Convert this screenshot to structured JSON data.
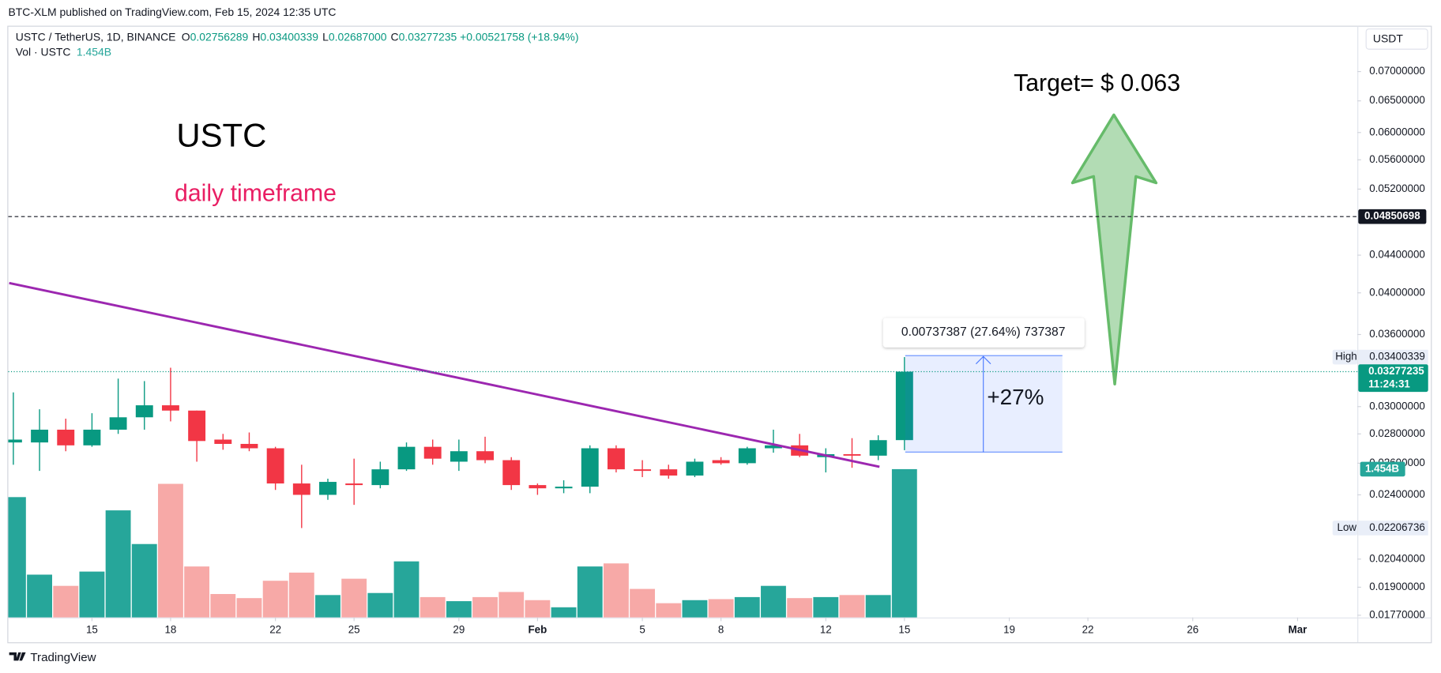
{
  "header": {
    "published": "BTC-XLM published on TradingView.com, Feb 15, 2024 12:35 UTC",
    "brand": "TradingView",
    "currency": "USDT"
  },
  "chart_data": {
    "type": "candlestick",
    "title": "USTC / TetherUS, 1D, BINANCE",
    "legend": {
      "keys": [
        "O",
        "H",
        "L",
        "C"
      ],
      "values": [
        "0.02756289",
        "0.03400339",
        "0.02687000",
        "0.03277235"
      ],
      "change": "+0.00521758 (+18.94%)"
    },
    "x": [
      "2024-01-12",
      "2024-01-13",
      "2024-01-14",
      "2024-01-15",
      "2024-01-16",
      "2024-01-17",
      "2024-01-18",
      "2024-01-19",
      "2024-01-20",
      "2024-01-21",
      "2024-01-22",
      "2024-01-23",
      "2024-01-24",
      "2024-01-25",
      "2024-01-26",
      "2024-01-27",
      "2024-01-28",
      "2024-01-29",
      "2024-01-30",
      "2024-01-31",
      "2024-02-01",
      "2024-02-02",
      "2024-02-03",
      "2024-02-04",
      "2024-02-05",
      "2024-02-06",
      "2024-02-07",
      "2024-02-08",
      "2024-02-09",
      "2024-02-10",
      "2024-02-11",
      "2024-02-12",
      "2024-02-13",
      "2024-02-14",
      "2024-02-15"
    ],
    "open": [
      0.0274,
      0.0274,
      0.0283,
      0.0272,
      0.0283,
      0.0292,
      0.0301,
      0.0297,
      0.0276,
      0.0273,
      0.027,
      0.0247,
      0.024,
      0.0247,
      0.0246,
      0.0256,
      0.0271,
      0.0261,
      0.0268,
      0.0262,
      0.0246,
      0.0244,
      0.0245,
      0.027,
      0.0256,
      0.0256,
      0.0252,
      0.0262,
      0.026,
      0.027,
      0.0272,
      0.0264,
      0.0266,
      0.0265,
      0.02756289
    ],
    "high": [
      0.0311,
      0.0298,
      0.0291,
      0.0295,
      0.0322,
      0.032,
      0.0331,
      0.0297,
      0.028,
      0.0281,
      0.0271,
      0.0259,
      0.025,
      0.0263,
      0.0261,
      0.0274,
      0.0276,
      0.0276,
      0.0278,
      0.0264,
      0.0247,
      0.0249,
      0.0272,
      0.0272,
      0.0262,
      0.0259,
      0.0263,
      0.0264,
      0.0271,
      0.0283,
      0.028,
      0.027,
      0.0277,
      0.0279,
      0.03400339
    ],
    "low": [
      0.0259,
      0.0255,
      0.0268,
      0.0271,
      0.028,
      0.0283,
      0.0289,
      0.0261,
      0.0269,
      0.0268,
      0.0243,
      0.02206736,
      0.0237,
      0.0234,
      0.0244,
      0.0255,
      0.0259,
      0.0255,
      0.026,
      0.0243,
      0.024,
      0.0241,
      0.0241,
      0.0254,
      0.0251,
      0.025,
      0.0251,
      0.0259,
      0.0259,
      0.0267,
      0.0264,
      0.0254,
      0.0257,
      0.0262,
      0.02687
    ],
    "close": [
      0.0276,
      0.0283,
      0.0272,
      0.0283,
      0.0292,
      0.0301,
      0.0297,
      0.0275,
      0.0273,
      0.027,
      0.0247,
      0.024,
      0.0248,
      0.0246,
      0.0256,
      0.0271,
      0.0263,
      0.0268,
      0.0262,
      0.0246,
      0.0244,
      0.0245,
      0.027,
      0.0256,
      0.0255,
      0.0252,
      0.0261,
      0.026,
      0.027,
      0.0272,
      0.0265,
      0.0266,
      0.0265,
      0.02756,
      0.03277235
    ],
    "volume": {
      "name": "Vol · USTC",
      "values": [
        1.18,
        0.42,
        0.31,
        0.45,
        1.05,
        0.72,
        1.31,
        0.5,
        0.23,
        0.19,
        0.36,
        0.44,
        0.22,
        0.38,
        0.24,
        0.55,
        0.2,
        0.16,
        0.2,
        0.25,
        0.17,
        0.1,
        0.5,
        0.53,
        0.28,
        0.14,
        0.17,
        0.18,
        0.2,
        0.31,
        0.19,
        0.2,
        0.22,
        0.22,
        1.454
      ],
      "value_labels": [
        null,
        null,
        null,
        null,
        null,
        null,
        null,
        null,
        null,
        null,
        null,
        null,
        null,
        null,
        null,
        null,
        null,
        null,
        null,
        null,
        null,
        null,
        null,
        null,
        null,
        null,
        null,
        null,
        null,
        null,
        null,
        null,
        null,
        null,
        "1.454B"
      ]
    },
    "colors": {
      "up": "#089981",
      "down": "#f23645",
      "volume_up": "#26a69a",
      "volume_down": "#f7a9a7"
    },
    "log": true,
    "grid": false,
    "ylim": [
      0.0176,
      0.0786
    ],
    "volume_lim": [
      0,
      5.8
    ],
    "yticks": [
      {
        "value": 0.07,
        "label": "0.07000000"
      },
      {
        "value": 0.065,
        "label": "0.06500000"
      },
      {
        "value": 0.06,
        "label": "0.06000000"
      },
      {
        "value": 0.056,
        "label": "0.05600000"
      },
      {
        "value": 0.052,
        "label": "0.05200000"
      },
      {
        "value": 0.044,
        "label": "0.04400000"
      },
      {
        "value": 0.04,
        "label": "0.04000000"
      },
      {
        "value": 0.036,
        "label": "0.03600000"
      },
      {
        "value": 0.03,
        "label": "0.03000000"
      },
      {
        "value": 0.028,
        "label": "0.02800000"
      },
      {
        "value": 0.026,
        "label": "0.02600000"
      },
      {
        "value": 0.024,
        "label": "0.02400000"
      },
      {
        "value": 0.0204,
        "label": "0.02040000"
      },
      {
        "value": 0.019,
        "label": "0.01900000"
      },
      {
        "value": 0.0177,
        "label": "0.01770000"
      }
    ],
    "xlim": [
      "2024-01-11",
      "2024-03-04"
    ],
    "xticks": [
      {
        "value": "2024-01-15",
        "label": "15"
      },
      {
        "value": "2024-01-18",
        "label": "18"
      },
      {
        "value": "2024-01-22",
        "label": "22"
      },
      {
        "value": "2024-01-25",
        "label": "25"
      },
      {
        "value": "2024-01-29",
        "label": "29"
      },
      {
        "value": "2024-02-01",
        "label": "Feb"
      },
      {
        "value": "2024-02-05",
        "label": "5"
      },
      {
        "value": "2024-02-08",
        "label": "8"
      },
      {
        "value": "2024-02-12",
        "label": "12"
      },
      {
        "value": "2024-02-15",
        "label": "15"
      },
      {
        "value": "2024-02-19",
        "label": "19"
      },
      {
        "value": "2024-02-22",
        "label": "22"
      },
      {
        "value": "2024-02-26",
        "label": "26"
      },
      {
        "value": "2024-03-01",
        "label": "Mar"
      }
    ],
    "price_line": {
      "value": 0.04850698,
      "label": "0.04850698"
    },
    "high_label": "High",
    "low_label": "Low",
    "countdown": "11:24:31",
    "annotations": {
      "symbol": "USTC",
      "timeframe": "daily timeframe",
      "target": "Target= $ 0.063",
      "measure": "0.00737387 (27.64%) 737387",
      "gain": "+27%"
    }
  }
}
